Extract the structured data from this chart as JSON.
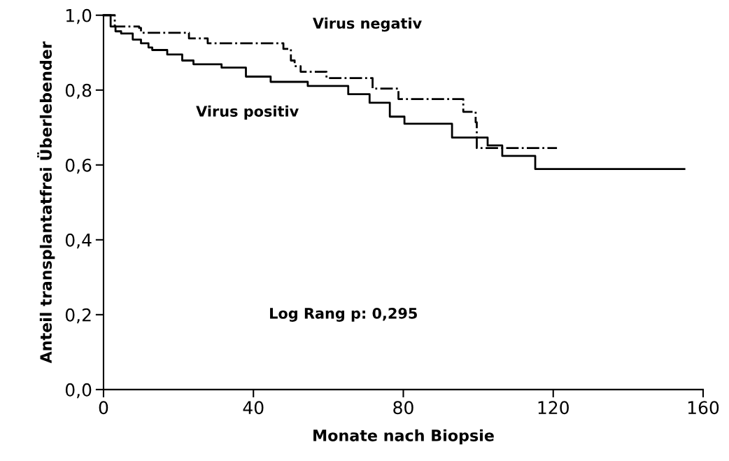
{
  "chart_data": {
    "type": "step",
    "xlabel": "Monate nach Biopsie",
    "ylabel": "Anteil transplantatfrei Überlebender",
    "annotations": [
      "Log Rang p: 0,295"
    ],
    "series": [
      {
        "name": "Virus negativ",
        "color": "#000000",
        "line_style": "dashed",
        "x": [
          0,
          3,
          9.5,
          10,
          22.8,
          27.8,
          48,
          50,
          51,
          52.6,
          59.5,
          71.8,
          78.7,
          96,
          99.3,
          99.6,
          121
        ],
        "values": [
          1.0,
          0.97,
          0.966,
          0.953,
          0.938,
          0.925,
          0.91,
          0.879,
          0.864,
          0.849,
          0.832,
          0.804,
          0.776,
          0.742,
          0.714,
          0.645,
          0.645
        ]
      },
      {
        "name": "Virus positiv",
        "color": "#000000",
        "line_style": "solid",
        "x": [
          0,
          1.9,
          3.2,
          4.7,
          7.8,
          10,
          12,
          13,
          17,
          21,
          24,
          31.5,
          38,
          44.6,
          54.5,
          65.3,
          71,
          76.4,
          80.3,
          93,
          102.5,
          106.4,
          115.2,
          155
        ],
        "values": [
          1.0,
          0.97,
          0.957,
          0.951,
          0.935,
          0.925,
          0.914,
          0.907,
          0.895,
          0.879,
          0.869,
          0.86,
          0.836,
          0.822,
          0.811,
          0.789,
          0.766,
          0.729,
          0.71,
          0.673,
          0.652,
          0.624,
          0.589,
          0.589
        ]
      }
    ],
    "xlim": [
      0,
      160
    ],
    "xticks": [
      0,
      40,
      80,
      120,
      160
    ],
    "ylim": [
      0,
      1.0
    ],
    "yticks": [
      {
        "value": 0,
        "label": "0,0"
      },
      {
        "value": 0.2,
        "label": "0,2"
      },
      {
        "value": 0.4,
        "label": "0,4"
      },
      {
        "value": 0.6,
        "label": "0,6"
      },
      {
        "value": 0.8,
        "label": "0,8"
      },
      {
        "value": 1.0,
        "label": "1,0"
      }
    ],
    "grid": false,
    "legend": false
  }
}
